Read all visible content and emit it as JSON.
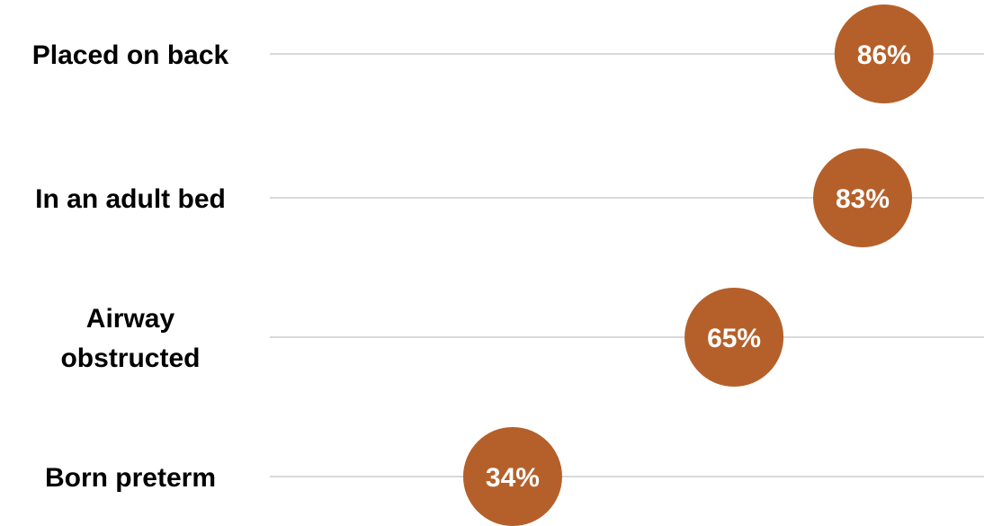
{
  "chart_data": {
    "type": "dot",
    "categories": [
      "Placed on back",
      "In an adult bed",
      "Airway obstructed",
      "Born preterm"
    ],
    "category_lines": [
      [
        "Placed on back"
      ],
      [
        "In an adult bed"
      ],
      [
        "Airway",
        "obstructed"
      ],
      [
        "Born preterm"
      ]
    ],
    "values": [
      86,
      83,
      65,
      34
    ],
    "value_labels": [
      "86%",
      "83%",
      "65%",
      "34%"
    ],
    "xlim": [
      0,
      100
    ],
    "grid": true,
    "legend": "none"
  },
  "colors": {
    "marker": "#b5602a",
    "gridline": "#d9d9d9",
    "label_text": "#000000",
    "marker_text": "#ffffff"
  }
}
